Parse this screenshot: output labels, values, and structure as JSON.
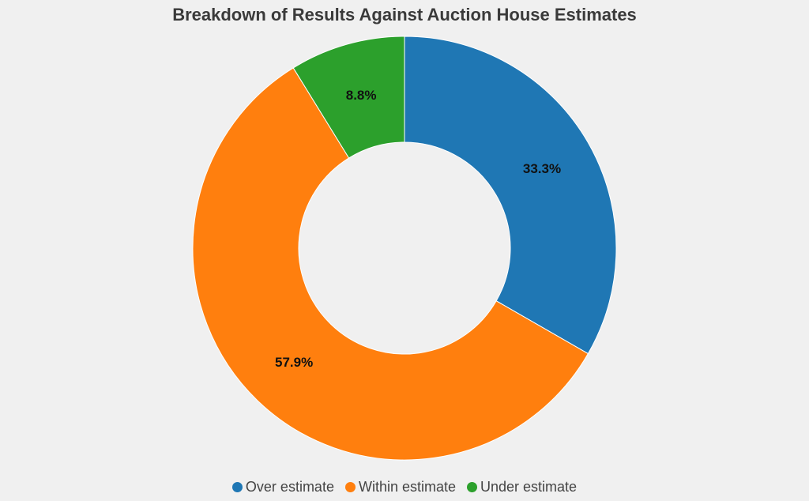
{
  "chart_data": {
    "type": "pie",
    "title": "Breakdown of Results Against Auction House Estimates",
    "donut": true,
    "legend_position": "bottom",
    "slices": [
      {
        "label": "Over estimate",
        "value": 33.3,
        "value_label": "33.3%",
        "color": "#1f77b4"
      },
      {
        "label": "Within estimate",
        "value": 57.9,
        "value_label": "57.9%",
        "color": "#ff7f0e"
      },
      {
        "label": "Under estimate",
        "value": 8.8,
        "value_label": "8.8%",
        "color": "#2ca02c"
      }
    ]
  }
}
